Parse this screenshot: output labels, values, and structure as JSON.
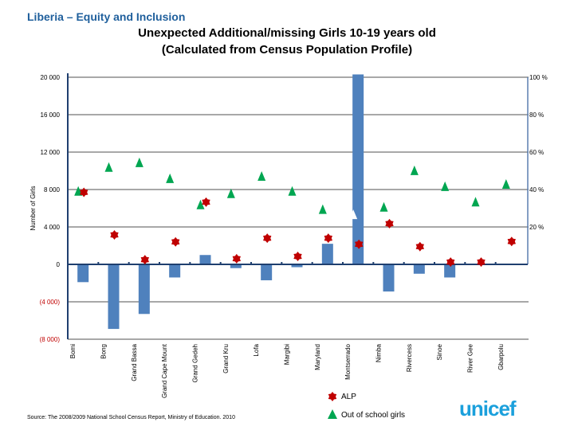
{
  "header": {
    "kicker": "Liberia – Equity and Inclusion",
    "title_line1": "Unexpected Additional/missing Girls 10-19 years old",
    "title_line2": "(Calculated from Census Population Profile)"
  },
  "source": "Source: The 2008/2009 National School Census Report, Ministry of Education. 2010",
  "logo": "unicef",
  "colors": {
    "bar": "#4f81bd",
    "alp": "#c00000",
    "out_of_school": "#00a651",
    "axis": "#1f3f6f",
    "negative_label": "#c00000"
  },
  "chart_data": {
    "type": "bar",
    "title": "Unexpected Additional/missing Girls 10-19 years old",
    "ylabel": "Number of Girls",
    "ylim": [
      -8000,
      20000
    ],
    "y_ticks": [
      "20 000",
      "16 000",
      "12 000",
      "8 000",
      "4 000",
      "0",
      "(4 000)",
      "(8 000)"
    ],
    "y_tick_values": [
      20000,
      16000,
      12000,
      8000,
      4000,
      0,
      -4000,
      -8000
    ],
    "y2_ticks": [
      "100 %",
      "80 %",
      "60 %",
      "40 %",
      "20 %"
    ],
    "y2lim": [
      0,
      100
    ],
    "grid": true,
    "categories": [
      "Bomi",
      "Bong",
      "Grand Bassa",
      "Grand Cape Mount",
      "Grand Gedeh",
      "Grand Kru",
      "Lofa",
      "Margibi",
      "Maryland",
      "Montserrado",
      "Nimba",
      "Rivercess",
      "Sinoe",
      "River Gee",
      "Gbarpolu"
    ],
    "series": [
      {
        "name": "Unexpected additional/missing girls",
        "type": "bar",
        "values": [
          -1900,
          -6900,
          -5300,
          -1400,
          1000,
          -400,
          -1700,
          -300,
          2200,
          20300,
          -2900,
          -1000,
          -1400,
          0,
          0
        ]
      },
      {
        "name": "ALP",
        "type": "marker",
        "values": [
          7700,
          3150,
          500,
          2400,
          6650,
          600,
          2800,
          850,
          2800,
          2150,
          4350,
          1900,
          250,
          250,
          2450
        ]
      },
      {
        "name": "Out of school girls",
        "type": "marker",
        "values": [
          7850,
          10400,
          10900,
          9200,
          6400,
          7600,
          9450,
          7850,
          5900,
          5350,
          6150,
          10050,
          8350,
          6700,
          8600
        ]
      }
    ],
    "legend": {
      "position": "bottom-right",
      "items": [
        "ALP",
        "Out of school girls"
      ]
    }
  }
}
